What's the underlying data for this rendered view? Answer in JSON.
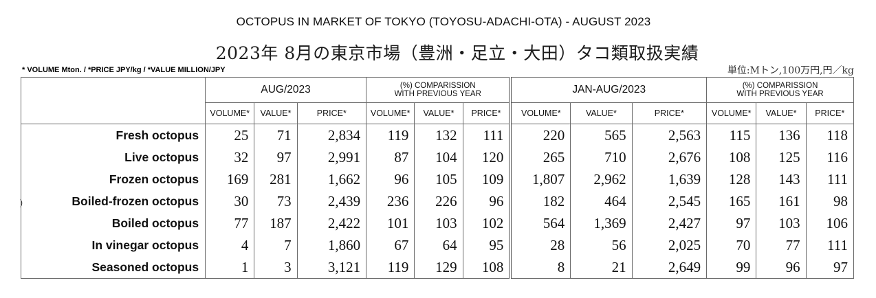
{
  "title_en": "OCTOPUS IN MARKET OF TOKYO (TOYOSU-ADACHI-OTA)  -  AUGUST 2023",
  "title_jp": "2023年 8月の東京市場（豊洲・足立・大田）タコ類取扱実績",
  "units_note": "* VOLUME Mton.  / *PRICE JPY/kg / *VALUE MILLION/JPY",
  "units_jp": "単位:Mトン,100万円,円／kg",
  "stray_mark": ")",
  "table": {
    "groups": [
      {
        "label": "AUG/2023",
        "line1": "",
        "line2": ""
      },
      {
        "label": "",
        "line1": "(%) COMPARISSION",
        "line2": "WITH PREVIOUS YEAR"
      },
      {
        "label": "JAN-AUG/2023",
        "line1": "",
        "line2": ""
      },
      {
        "label": "",
        "line1": "(%) COMPARISSION",
        "line2": "WITH PREVIOUS YEAR"
      }
    ],
    "sub_headers": [
      "VOLUME*",
      "VALUE*",
      "PRICE*",
      "VOLUME*",
      "VALUE*",
      "PRICE*",
      "VOLUME*",
      "VALUE*",
      "PRICE*",
      "VOLUME*",
      "VALUE*",
      "PRICE*"
    ],
    "rows": [
      {
        "label": "Fresh octopus",
        "values": [
          "25",
          "71",
          "2,834",
          "119",
          "132",
          "111",
          "220",
          "565",
          "2,563",
          "115",
          "136",
          "118"
        ]
      },
      {
        "label": "Live octopus",
        "values": [
          "32",
          "97",
          "2,991",
          "87",
          "104",
          "120",
          "265",
          "710",
          "2,676",
          "108",
          "125",
          "116"
        ]
      },
      {
        "label": "Frozen octopus",
        "values": [
          "169",
          "281",
          "1,662",
          "96",
          "105",
          "109",
          "1,807",
          "2,962",
          "1,639",
          "128",
          "143",
          "111"
        ]
      },
      {
        "label": "Boiled-frozen octopus",
        "values": [
          "30",
          "73",
          "2,439",
          "236",
          "226",
          "96",
          "182",
          "464",
          "2,545",
          "165",
          "161",
          "98"
        ]
      },
      {
        "label": "Boiled octopus",
        "values": [
          "77",
          "187",
          "2,422",
          "101",
          "103",
          "102",
          "564",
          "1,369",
          "2,427",
          "97",
          "103",
          "106"
        ]
      },
      {
        "label": "In vinegar octopus",
        "values": [
          "4",
          "7",
          "1,860",
          "67",
          "64",
          "95",
          "28",
          "56",
          "2,025",
          "70",
          "77",
          "111"
        ]
      },
      {
        "label": "Seasoned octopus",
        "values": [
          "1",
          "3",
          "3,121",
          "119",
          "129",
          "108",
          "8",
          "21",
          "2,649",
          "99",
          "96",
          "97"
        ]
      }
    ]
  }
}
